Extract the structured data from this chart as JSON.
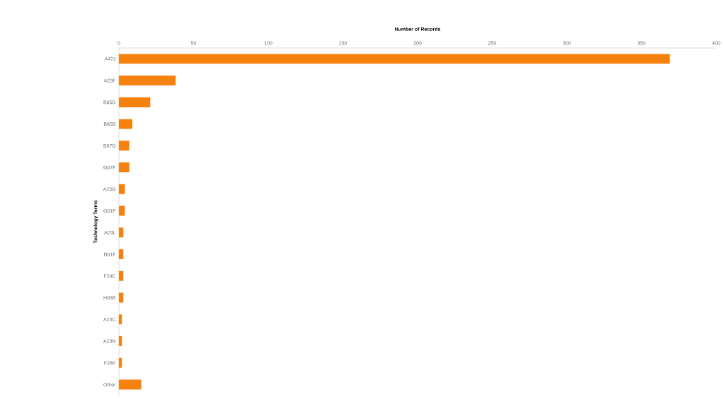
{
  "chart_data": {
    "type": "bar",
    "orientation": "horizontal",
    "xlabel": "Number of Records",
    "ylabel": "Technology Terms",
    "categories": [
      "A47J",
      "A23F",
      "B65D",
      "B65B",
      "B67D",
      "G07F",
      "A23G",
      "G01F",
      "A23L",
      "B01F",
      "F24C",
      "H05B",
      "A23C",
      "A23N",
      "F16K",
      "Other"
    ],
    "values": [
      369,
      38,
      21,
      9,
      7,
      7,
      4,
      4,
      3,
      3,
      3,
      3,
      2,
      2,
      2,
      15
    ],
    "color": "#f5820f",
    "xlim": [
      0,
      400
    ],
    "xticks": [
      0,
      50,
      100,
      150,
      200,
      250,
      300,
      350,
      400
    ],
    "grid": false
  }
}
